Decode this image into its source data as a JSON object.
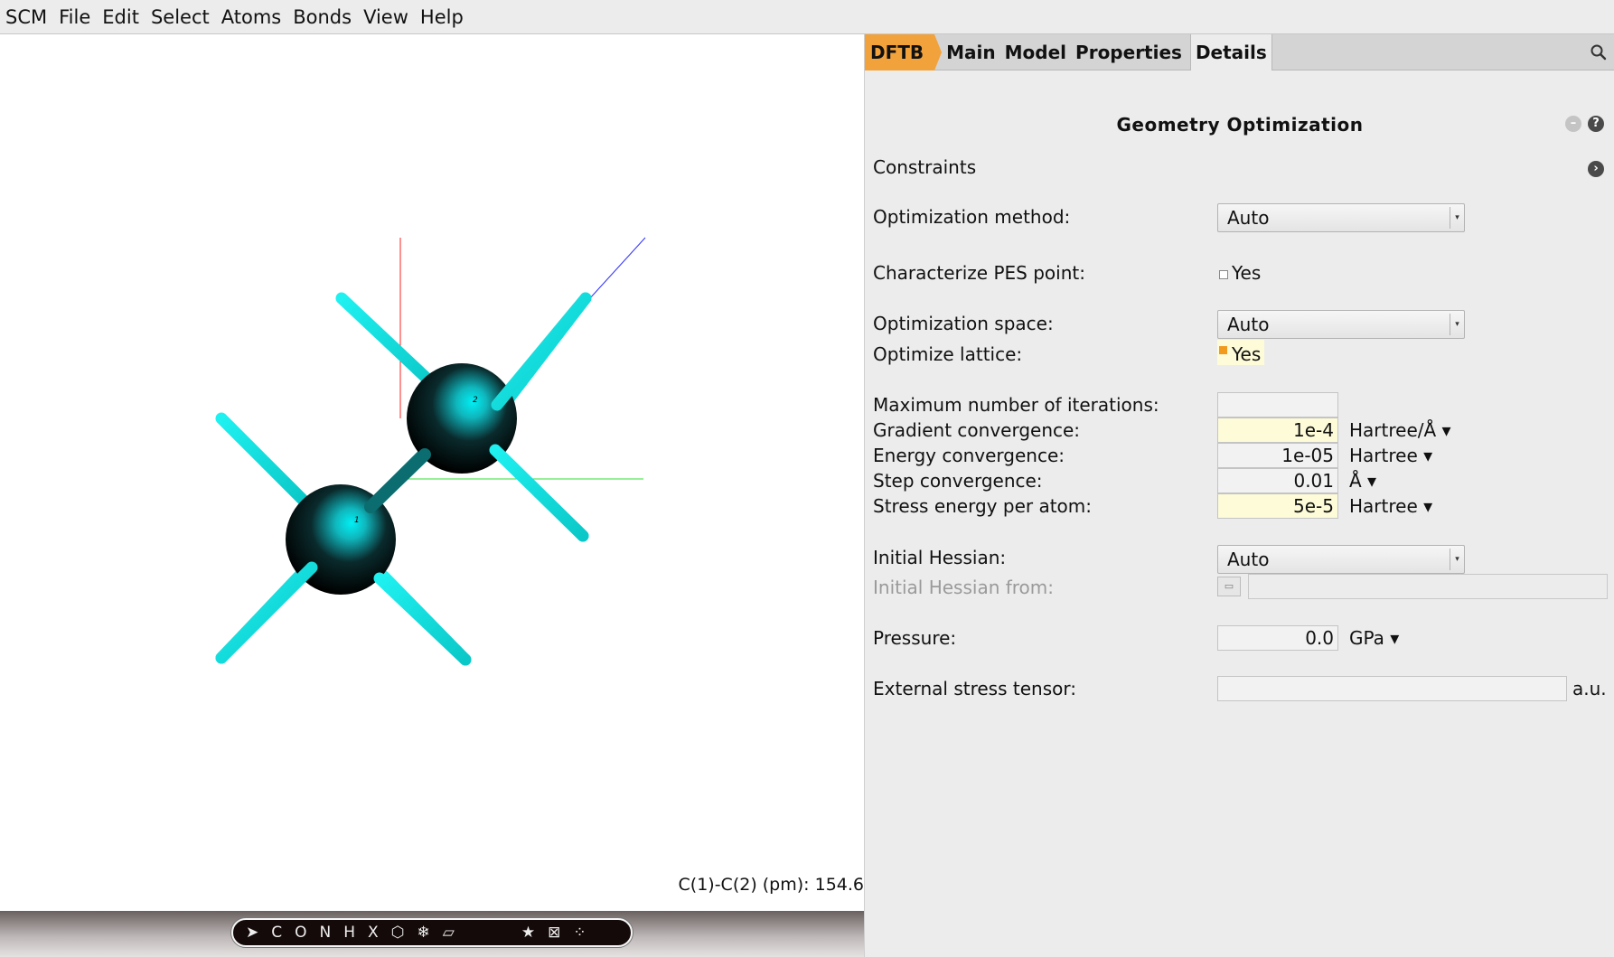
{
  "menu": {
    "items": [
      {
        "label": "SCM"
      },
      {
        "label": "File"
      },
      {
        "label": "Edit"
      },
      {
        "label": "Select"
      },
      {
        "label": "Atoms"
      },
      {
        "label": "Bonds"
      },
      {
        "label": "View"
      },
      {
        "label": "Help"
      }
    ]
  },
  "viewport": {
    "measurement": "C(1)-C(2) (pm): 154.6",
    "atoms": [
      {
        "label": "1",
        "element": "C"
      },
      {
        "label": "2",
        "element": "C"
      }
    ],
    "colors": {
      "atom": "#0a0a0a",
      "atom_highlight": "#00e5ee",
      "bond": "#1ee6e6",
      "axis_x": "#ff0000",
      "axis_y": "#00cc00",
      "axis_z": "#0000ff"
    }
  },
  "palette": {
    "items": [
      "cursor-icon",
      "C",
      "O",
      "N",
      "H",
      "X",
      "ring-icon",
      "snowflake-icon",
      "plane-icon",
      "star-icon",
      "frame-icon",
      "dots-icon"
    ]
  },
  "panel": {
    "tabs": {
      "engine": "DFTB",
      "main": "Main",
      "model": "Model",
      "properties": "Properties",
      "details": "Details"
    },
    "title": "Geometry Optimization",
    "constraints": "Constraints",
    "fields": {
      "optimization_method": {
        "label": "Optimization method:",
        "value": "Auto"
      },
      "characterize_pes": {
        "label": "Characterize PES point:",
        "option": "Yes",
        "checked": false
      },
      "optimization_space": {
        "label": "Optimization space:",
        "value": "Auto"
      },
      "optimize_lattice": {
        "label": "Optimize lattice:",
        "option": "Yes",
        "checked": true
      },
      "max_iterations": {
        "label": "Maximum number of iterations:",
        "value": ""
      },
      "gradient_convergence": {
        "label": "Gradient convergence:",
        "value": "1e-4",
        "unit": "Hartree/Å ▾"
      },
      "energy_convergence": {
        "label": "Energy convergence:",
        "value": "1e-05",
        "unit": "Hartree ▾"
      },
      "step_convergence": {
        "label": "Step convergence:",
        "value": "0.01",
        "unit": "Å ▾"
      },
      "stress_energy": {
        "label": "Stress energy per atom:",
        "value": "5e-5",
        "unit": "Hartree ▾"
      },
      "initial_hessian": {
        "label": "Initial Hessian:",
        "value": "Auto"
      },
      "initial_hessian_from": {
        "label": "Initial Hessian from:",
        "value": ""
      },
      "pressure": {
        "label": "Pressure:",
        "value": "0.0",
        "unit": "GPa ▾"
      },
      "external_stress": {
        "label": "External stress tensor:",
        "value": "",
        "unit": "a.u."
      }
    }
  }
}
